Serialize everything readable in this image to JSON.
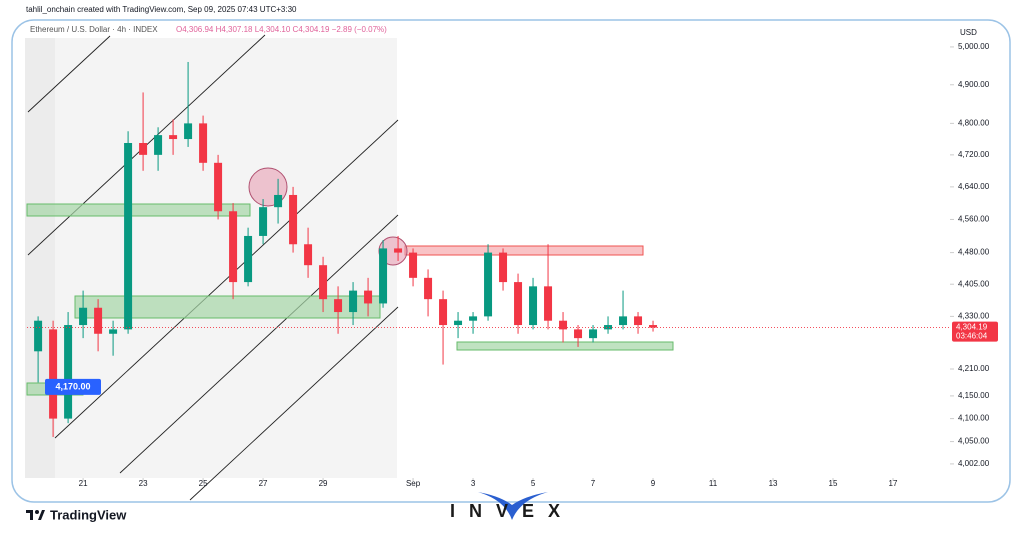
{
  "header": "tahlil_onchain created with TradingView.com, Sep 09, 2025 07:43 UTC+3:30",
  "footer": {
    "brand": "TradingView",
    "watermark": "INVEX"
  },
  "chart_data": {
    "type": "candlestick",
    "legend": "Ethereum / U.S. Dollar · 4h · INDEX",
    "ohlc_text": "O4,306.94 H4,307.18 L4,304.10 C4,304.19 −2.89 (−0.07%)",
    "currency": "USD",
    "last_price": {
      "value": 4304.19,
      "label": "4,304.19"
    },
    "countdown": "03:46:04",
    "annotation": {
      "value": 4170,
      "label": "4,170.00"
    },
    "log_scale": true,
    "up_color": "#089981",
    "down_color": "#f23645",
    "x": [
      19.5,
      20,
      20.5,
      21,
      21.5,
      22,
      22.5,
      23,
      23.5,
      24,
      24.5,
      25,
      25.5,
      26,
      26.5,
      27,
      27.5,
      28,
      28.5,
      29,
      29.5,
      30,
      30.5,
      31,
      31.5,
      32,
      32.5,
      33,
      33.5,
      34,
      34.5,
      35,
      35.5,
      36,
      36.5,
      37,
      37.5,
      38,
      38.5,
      39,
      39.5,
      40
    ],
    "open": [
      4250,
      4300,
      4100,
      4310,
      4350,
      4290,
      4300,
      4750,
      4720,
      4770,
      4760,
      4800,
      4700,
      4580,
      4410,
      4520,
      4590,
      4620,
      4500,
      4450,
      4370,
      4340,
      4390,
      4360,
      4490,
      4480,
      4420,
      4370,
      4310,
      4320,
      4330,
      4480,
      4410,
      4310,
      4400,
      4320,
      4300,
      4280,
      4300,
      4310,
      4330,
      4310
    ],
    "high": [
      4330,
      4320,
      4340,
      4390,
      4370,
      4320,
      4780,
      4880,
      4790,
      4810,
      4960,
      4820,
      4720,
      4600,
      4540,
      4610,
      4660,
      4640,
      4540,
      4470,
      4400,
      4410,
      4420,
      4510,
      4520,
      4490,
      4440,
      4390,
      4340,
      4340,
      4500,
      4490,
      4430,
      4420,
      4500,
      4340,
      4310,
      4310,
      4330,
      4390,
      4340,
      4320
    ],
    "low": [
      4180,
      4060,
      4090,
      4280,
      4250,
      4240,
      4290,
      4680,
      4680,
      4720,
      4740,
      4680,
      4560,
      4370,
      4400,
      4500,
      4550,
      4480,
      4420,
      4340,
      4290,
      4310,
      4330,
      4350,
      4460,
      4400,
      4330,
      4220,
      4280,
      4290,
      4320,
      4390,
      4290,
      4300,
      4300,
      4270,
      4260,
      4270,
      4290,
      4300,
      4290,
      4295
    ],
    "close": [
      4320,
      4100,
      4310,
      4350,
      4290,
      4300,
      4750,
      4720,
      4770,
      4760,
      4800,
      4700,
      4580,
      4410,
      4520,
      4590,
      4620,
      4500,
      4450,
      4370,
      4340,
      4390,
      4360,
      4490,
      4480,
      4420,
      4370,
      4310,
      4320,
      4330,
      4480,
      4410,
      4310,
      4400,
      4320,
      4300,
      4280,
      4300,
      4310,
      4330,
      4310,
      4304.19
    ],
    "xlim": [
      18.73,
      49.9
    ],
    "xticks": [
      21,
      23,
      25,
      27,
      29,
      {
        "value": 32,
        "label": "Sep"
      },
      {
        "value": 34,
        "label": "3"
      },
      {
        "value": 36,
        "label": "5"
      },
      {
        "value": 38,
        "label": "7"
      },
      {
        "value": 40,
        "label": "9"
      },
      {
        "value": 42,
        "label": "11"
      },
      {
        "value": 44,
        "label": "13"
      },
      {
        "value": 46,
        "label": "15"
      },
      {
        "value": 48,
        "label": "17"
      }
    ],
    "ylim": [
      3972,
      5067
    ],
    "yticks": [
      {
        "value": 5000,
        "label": "5,000.00"
      },
      {
        "value": 4900,
        "label": "4,900.00"
      },
      {
        "value": 4800,
        "label": "4,800.00"
      },
      {
        "value": 4720,
        "label": "4,720.00"
      },
      {
        "value": 4640,
        "label": "4,640.00"
      },
      {
        "value": 4560,
        "label": "4,560.00"
      },
      {
        "value": 4480,
        "label": "4,480.00"
      },
      {
        "value": 4405,
        "label": "4,405.00"
      },
      {
        "value": 4330,
        "label": "4,330.00"
      },
      {
        "value": 4210,
        "label": "4,210.00"
      },
      {
        "value": 4150,
        "label": "4,150.00"
      },
      {
        "value": 4100,
        "label": "4,100.00"
      },
      {
        "value": 4050,
        "label": "4,050.00"
      },
      {
        "value": 4002,
        "label": "4,002.00"
      }
    ]
  }
}
